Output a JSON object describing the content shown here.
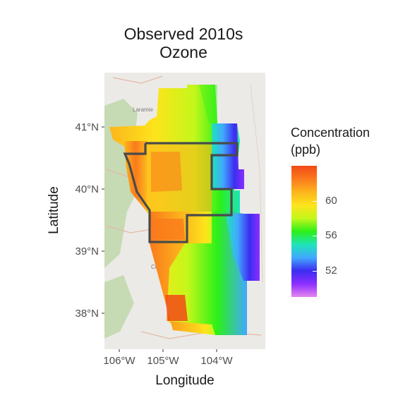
{
  "title": {
    "line1": "Observed 2010s",
    "line2": "Ozone"
  },
  "axes": {
    "xlabel": "Longitude",
    "ylabel": "Latitude",
    "x_ticks": [
      "106°W",
      "105°W",
      "104°W"
    ],
    "y_ticks": [
      "41°N",
      "40°N",
      "39°N",
      "38°N"
    ]
  },
  "basemap_labels": [
    "Laramie",
    "Colora"
  ],
  "legend": {
    "title_line1": "Concentration",
    "title_line2": "(ppb)",
    "ticks": [
      "60",
      "56",
      "52"
    ],
    "range": [
      49,
      64
    ]
  },
  "colors": {
    "scale": [
      "#e586ef",
      "#8c2fff",
      "#3c2df0",
      "#41a8ff",
      "#1ee4b8",
      "#2cf018",
      "#c4f71a",
      "#fde41c",
      "#fcb51c",
      "#fa7a1c",
      "#f24a16"
    ],
    "outline": "#4a4a4a",
    "basemap_land": "#eceae6",
    "basemap_green": "#c6dbb4"
  }
}
